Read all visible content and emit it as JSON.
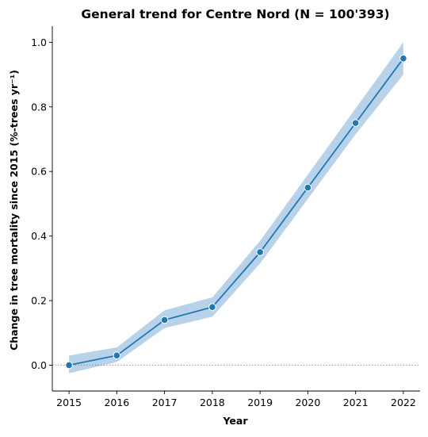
{
  "chart_data": {
    "type": "line",
    "title": "General trend for Centre Nord  (N = 100'393)",
    "xlabel": "Year",
    "ylabel": "Change in tree mortality since 2015 (%-trees yr⁻¹)",
    "x": [
      2015,
      2016,
      2017,
      2018,
      2019,
      2020,
      2021,
      2022
    ],
    "series": [
      {
        "values": [
          0.0,
          0.03,
          0.14,
          0.18,
          0.35,
          0.55,
          0.75,
          0.95
        ],
        "ci_lower": [
          -0.025,
          0.01,
          0.115,
          0.15,
          0.315,
          0.515,
          0.715,
          0.9
        ],
        "ci_upper": [
          0.03,
          0.055,
          0.17,
          0.21,
          0.385,
          0.59,
          0.795,
          1.0
        ],
        "color": "#1f77b4",
        "band_color": "#a6c8e4"
      }
    ],
    "xlim": [
      2014.65,
      2022.35
    ],
    "ylim": [
      -0.08,
      1.05
    ],
    "x_ticks": [
      2015,
      2016,
      2017,
      2018,
      2019,
      2020,
      2021,
      2022
    ],
    "y_ticks": [
      "0.0",
      "0.2",
      "0.4",
      "0.6",
      "0.8",
      "1.0"
    ],
    "reference_line": {
      "y": 0,
      "style": "dotted",
      "color": "#808080"
    },
    "grid": false
  }
}
